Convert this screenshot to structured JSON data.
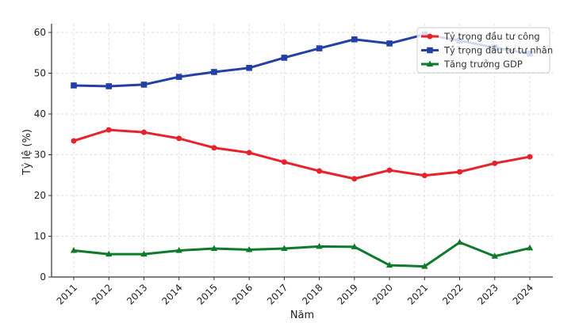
{
  "chart_data": {
    "type": "line",
    "title": "",
    "xlabel": "Năm",
    "ylabel": "Tỷ lệ (%)",
    "x": [
      2011,
      2012,
      2013,
      2014,
      2015,
      2016,
      2017,
      2018,
      2019,
      2020,
      2021,
      2022,
      2023,
      2024
    ],
    "ylim": [
      0,
      62
    ],
    "yticks": [
      0,
      10,
      20,
      30,
      40,
      50,
      60
    ],
    "grid": true,
    "legend_position": "top-right",
    "series": [
      {
        "name": "Tỷ trọng đầu tư công",
        "color": "#e8212b",
        "marker": "circle",
        "values": [
          33.4,
          36.1,
          35.5,
          34.0,
          31.7,
          30.5,
          28.2,
          26.0,
          24.1,
          26.2,
          24.9,
          25.8,
          27.9,
          29.5
        ]
      },
      {
        "name": "Tỷ trọng đầu tư tư nhân",
        "color": "#2340a8",
        "marker": "square",
        "values": [
          47.0,
          46.8,
          47.2,
          49.1,
          50.3,
          51.3,
          53.8,
          56.1,
          58.3,
          57.3,
          59.5,
          58.0,
          56.3,
          54.8
        ]
      },
      {
        "name": "Tăng trưởng GDP",
        "color": "#0e7a2b",
        "marker": "triangle",
        "values": [
          6.5,
          5.6,
          5.6,
          6.5,
          7.0,
          6.7,
          7.0,
          7.5,
          7.4,
          2.9,
          2.6,
          8.5,
          5.1,
          7.1
        ]
      }
    ]
  }
}
